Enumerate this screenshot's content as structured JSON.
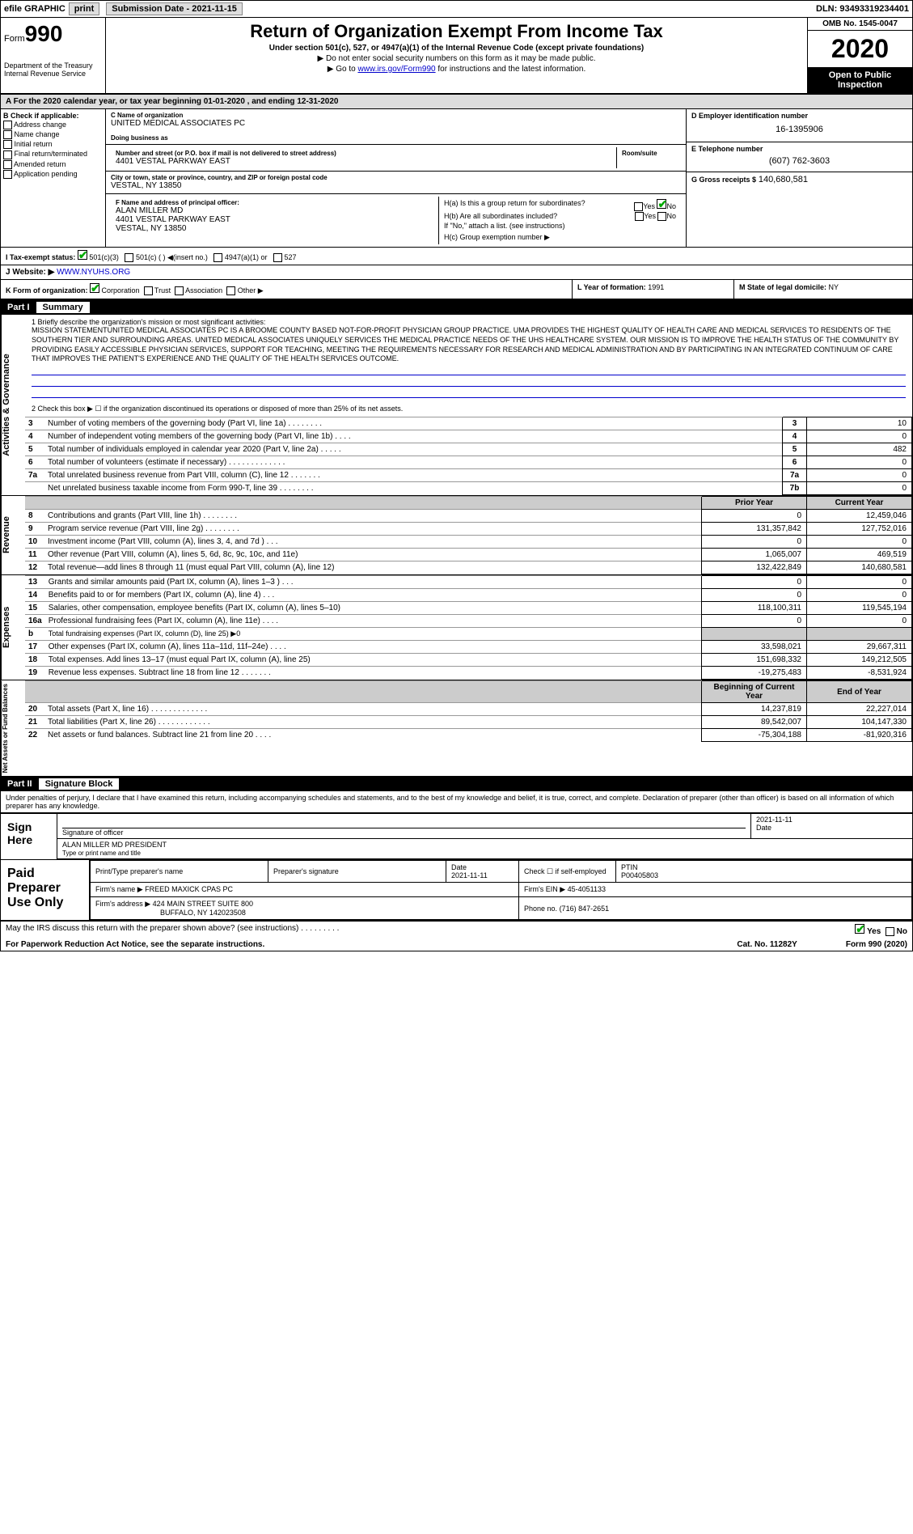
{
  "efile": {
    "graphic": "efile GRAPHIC",
    "print": "print",
    "subdate_label": "Submission Date - 2021-11-15",
    "dln": "DLN: 93493319234401"
  },
  "header": {
    "form_prefix": "Form",
    "form_no": "990",
    "dept": "Department of the Treasury\nInternal Revenue Service",
    "title": "Return of Organization Exempt From Income Tax",
    "subtitle": "Under section 501(c), 527, or 4947(a)(1) of the Internal Revenue Code (except private foundations)",
    "note1": "▶ Do not enter social security numbers on this form as it may be made public.",
    "note2_pre": "▶ Go to ",
    "note2_link": "www.irs.gov/Form990",
    "note2_post": " for instructions and the latest information.",
    "omb": "OMB No. 1545-0047",
    "year": "2020",
    "open": "Open to Public Inspection"
  },
  "period": "A For the 2020 calendar year, or tax year beginning 01-01-2020   , and ending 12-31-2020",
  "colB": {
    "hdr": "B Check if applicable:",
    "opts": [
      "Address change",
      "Name change",
      "Initial return",
      "Final return/terminated",
      "Amended return",
      "Application pending"
    ]
  },
  "orgname_label": "C Name of organization",
  "orgname": "UNITED MEDICAL ASSOCIATES PC",
  "dba_label": "Doing business as",
  "addr_label": "Number and street (or P.O. box if mail is not delivered to street address)",
  "room_label": "Room/suite",
  "addr": "4401 VESTAL PARKWAY EAST",
  "city_label": "City or town, state or province, country, and ZIP or foreign postal code",
  "city": "VESTAL, NY  13850",
  "ein_label": "D Employer identification number",
  "ein": "16-1395906",
  "tel_label": "E Telephone number",
  "tel": "(607) 762-3603",
  "gross_label": "G Gross receipts $",
  "gross": "140,680,581",
  "officer_label": "F  Name and address of principal officer:",
  "officer_name": "ALAN MILLER MD",
  "officer_addr": "4401 VESTAL PARKWAY EAST",
  "officer_city": "VESTAL, NY  13850",
  "h_a": "H(a)  Is this a group return for subordinates?",
  "h_b": "H(b)  Are all subordinates included?",
  "h_b_note": "If \"No,\" attach a list. (see instructions)",
  "h_c": "H(c)  Group exemption number ▶",
  "yes": "Yes",
  "no": "No",
  "tax_label": "I   Tax-exempt status:",
  "tax_opts": [
    "501(c)(3)",
    "501(c) (  )  ◀(insert no.)",
    "4947(a)(1) or",
    "527"
  ],
  "website_label": "J   Website: ▶",
  "website": "WWW.NYUHS.ORG",
  "k_label": "K Form of organization:",
  "k_opts": [
    "Corporation",
    "Trust",
    "Association",
    "Other ▶"
  ],
  "l_label": "L Year of formation:",
  "l_val": "1991",
  "m_label": "M State of legal domicile:",
  "m_val": "NY",
  "part1": {
    "partno": "Part I",
    "title": "Summary",
    "line1_label": "1  Briefly describe the organization's mission or most significant activities:",
    "mission": "MISSION STATEMENTUNITED MEDICAL ASSOCIATES PC IS A BROOME COUNTY BASED NOT-FOR-PROFIT PHYSICIAN GROUP PRACTICE. UMA PROVIDES THE HIGHEST QUALITY OF HEALTH CARE AND MEDICAL SERVICES TO RESIDENTS OF THE SOUTHERN TIER AND SURROUNDING AREAS. UNITED MEDICAL ASSOCIATES UNIQUELY SERVICES THE MEDICAL PRACTICE NEEDS OF THE UHS HEALTHCARE SYSTEM. OUR MISSION IS TO IMPROVE THE HEALTH STATUS OF THE COMMUNITY BY PROVIDING EASILY ACCESSIBLE PHYSICIAN SERVICES, SUPPORT FOR TEACHING, MEETING THE REQUIREMENTS NECESSARY FOR RESEARCH AND MEDICAL ADMINISTRATION AND BY PARTICIPATING IN AN INTEGRATED CONTINUUM OF CARE THAT IMPROVES THE PATIENT'S EXPERIENCE AND THE QUALITY OF THE HEALTH SERVICES OUTCOME.",
    "line2": "2  Check this box ▶ ☐ if the organization discontinued its operations or disposed of more than 25% of its net assets.",
    "vlabel": "Activities & Governance",
    "rows": [
      {
        "n": "3",
        "label": "Number of voting members of the governing body (Part VI, line 1a)  .   .   .   .   .   .   .   .",
        "box": "3",
        "val": "10"
      },
      {
        "n": "4",
        "label": "Number of independent voting members of the governing body (Part VI, line 1b)  .   .   .   .",
        "box": "4",
        "val": "0"
      },
      {
        "n": "5",
        "label": "Total number of individuals employed in calendar year 2020 (Part V, line 2a)  .   .   .   .   .",
        "box": "5",
        "val": "482"
      },
      {
        "n": "6",
        "label": "Total number of volunteers (estimate if necessary)  .   .   .   .   .   .   .   .   .   .   .   .   .",
        "box": "6",
        "val": "0"
      },
      {
        "n": "7a",
        "label": "Total unrelated business revenue from Part VIII, column (C), line 12  .   .   .   .   .   .   .",
        "box": "7a",
        "val": "0"
      },
      {
        "n": "",
        "label": "Net unrelated business taxable income from Form 990-T, line 39  .   .   .   .   .   .   .   .",
        "box": "7b",
        "val": "0"
      }
    ]
  },
  "revenue": {
    "vlabel": "Revenue",
    "hdr_prior": "Prior Year",
    "hdr_curr": "Current Year",
    "rows": [
      {
        "n": "8",
        "label": "Contributions and grants (Part VIII, line 1h)  .   .   .   .   .   .   .   .",
        "prior": "0",
        "curr": "12,459,046"
      },
      {
        "n": "9",
        "label": "Program service revenue (Part VIII, line 2g)  .   .   .   .   .   .   .   .",
        "prior": "131,357,842",
        "curr": "127,752,016"
      },
      {
        "n": "10",
        "label": "Investment income (Part VIII, column (A), lines 3, 4, and 7d )  .   .   .",
        "prior": "0",
        "curr": "0"
      },
      {
        "n": "11",
        "label": "Other revenue (Part VIII, column (A), lines 5, 6d, 8c, 9c, 10c, and 11e)",
        "prior": "1,065,007",
        "curr": "469,519"
      },
      {
        "n": "12",
        "label": "Total revenue—add lines 8 through 11 (must equal Part VIII, column (A), line 12)",
        "prior": "132,422,849",
        "curr": "140,680,581"
      }
    ]
  },
  "expenses": {
    "vlabel": "Expenses",
    "rows": [
      {
        "n": "13",
        "label": "Grants and similar amounts paid (Part IX, column (A), lines 1–3 )  .   .   .",
        "prior": "0",
        "curr": "0"
      },
      {
        "n": "14",
        "label": "Benefits paid to or for members (Part IX, column (A), line 4)  .   .   .",
        "prior": "0",
        "curr": "0"
      },
      {
        "n": "15",
        "label": "Salaries, other compensation, employee benefits (Part IX, column (A), lines 5–10)",
        "prior": "118,100,311",
        "curr": "119,545,194"
      },
      {
        "n": "16a",
        "label": "Professional fundraising fees (Part IX, column (A), line 11e)  .   .   .   .",
        "prior": "0",
        "curr": "0"
      },
      {
        "n": "b",
        "label": "Total fundraising expenses (Part IX, column (D), line 25) ▶0",
        "prior": "",
        "curr": "",
        "shade": true
      },
      {
        "n": "17",
        "label": "Other expenses (Part IX, column (A), lines 11a–11d, 11f–24e)  .   .   .   .",
        "prior": "33,598,021",
        "curr": "29,667,311"
      },
      {
        "n": "18",
        "label": "Total expenses. Add lines 13–17 (must equal Part IX, column (A), line 25)",
        "prior": "151,698,332",
        "curr": "149,212,505"
      },
      {
        "n": "19",
        "label": "Revenue less expenses. Subtract line 18 from line 12  .   .   .   .   .   .   .",
        "prior": "-19,275,483",
        "curr": "-8,531,924"
      }
    ]
  },
  "netassets": {
    "vlabel": "Net Assets or Fund Balances",
    "hdr_begin": "Beginning of Current Year",
    "hdr_end": "End of Year",
    "rows": [
      {
        "n": "20",
        "label": "Total assets (Part X, line 16)  .   .   .   .   .   .   .   .   .   .   .   .   .",
        "prior": "14,237,819",
        "curr": "22,227,014"
      },
      {
        "n": "21",
        "label": "Total liabilities (Part X, line 26)  .   .   .   .   .   .   .   .   .   .   .   .",
        "prior": "89,542,007",
        "curr": "104,147,330"
      },
      {
        "n": "22",
        "label": "Net assets or fund balances. Subtract line 21 from line 20  .   .   .   .",
        "prior": "-75,304,188",
        "curr": "-81,920,316"
      }
    ]
  },
  "part2": {
    "partno": "Part II",
    "title": "Signature Block",
    "decl": "Under penalties of perjury, I declare that I have examined this return, including accompanying schedules and statements, and to the best of my knowledge and belief, it is true, correct, and complete. Declaration of preparer (other than officer) is based on all information of which preparer has any knowledge."
  },
  "sign": {
    "label": "Sign Here",
    "sig_label": "Signature of officer",
    "date": "2021-11-11",
    "date_label": "Date",
    "name": "ALAN MILLER MD PRESIDENT",
    "name_label": "Type or print name and title"
  },
  "prep": {
    "label": "Paid Preparer Use Only",
    "print_label": "Print/Type preparer's name",
    "sig_label": "Preparer's signature",
    "date_label": "Date",
    "date": "2021-11-11",
    "check_label": "Check ☐ if self-employed",
    "ptin_label": "PTIN",
    "ptin": "P00405803",
    "firm_label": "Firm's name    ▶",
    "firm": "FREED MAXICK CPAS PC",
    "ein_label": "Firm's EIN ▶",
    "ein": "45-4051133",
    "addr_label": "Firm's address ▶",
    "addr": "424 MAIN STREET SUITE 800",
    "addr2": "BUFFALO, NY  142023508",
    "phone_label": "Phone no.",
    "phone": "(716) 847-2651"
  },
  "discuss": "May the IRS discuss this return with the preparer shown above? (see instructions)  .   .   .   .   .   .   .   .   .",
  "footer": {
    "pra": "For Paperwork Reduction Act Notice, see the separate instructions.",
    "cat": "Cat. No. 11282Y",
    "form": "Form 990 (2020)"
  }
}
